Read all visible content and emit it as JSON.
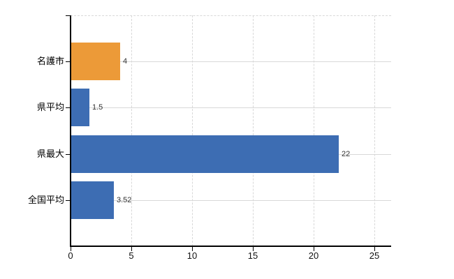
{
  "chart_data": {
    "type": "bar",
    "orientation": "horizontal",
    "title": "",
    "xlabel": "",
    "ylabel": "",
    "categories": [
      "名護市",
      "県平均",
      "県最大",
      "全国平均"
    ],
    "values": [
      4,
      1.5,
      22,
      3.52
    ],
    "value_labels": [
      "4",
      "1.5",
      "22",
      "3.52"
    ],
    "bar_colors": [
      "#EC9A38",
      "#3D6DB3",
      "#3D6DB3",
      "#3D6DB3"
    ],
    "x_ticks": [
      0,
      5,
      10,
      15,
      20,
      25
    ],
    "xlim": [
      0,
      26.4
    ],
    "grid": true,
    "legend_position": "none"
  },
  "colors": {
    "bar_orange": "#EC9A38",
    "bar_blue": "#3D6DB3",
    "gridline": "#D8D8D8",
    "axis": "#000000",
    "value_text": "#333333",
    "label_text": "#000000",
    "background": "#FFFFFF"
  }
}
